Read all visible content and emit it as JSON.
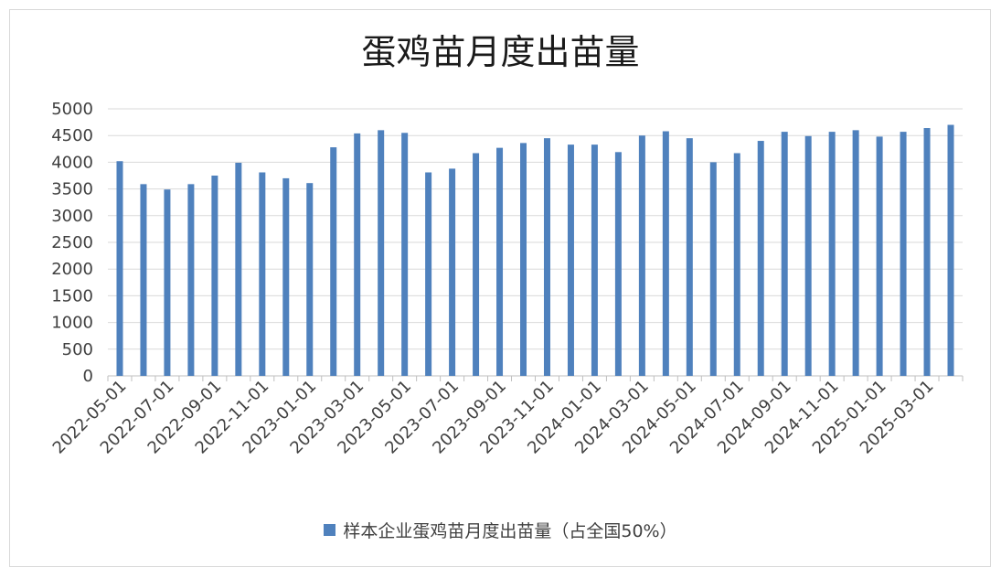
{
  "chart_data": {
    "type": "bar",
    "title": "蛋鸡苗月度出苗量",
    "xlabel": "",
    "ylabel": "",
    "ylim": [
      0,
      5000
    ],
    "yticks": [
      0,
      500,
      1000,
      1500,
      2000,
      2500,
      3000,
      3500,
      4000,
      4500,
      5000
    ],
    "grid": true,
    "legend_position": "bottom",
    "categories": [
      "2022-05-01",
      "2022-06-01",
      "2022-07-01",
      "2022-08-01",
      "2022-09-01",
      "2022-10-01",
      "2022-11-01",
      "2022-12-01",
      "2023-01-01",
      "2023-02-01",
      "2023-03-01",
      "2023-04-01",
      "2023-05-01",
      "2023-06-01",
      "2023-07-01",
      "2023-08-01",
      "2023-09-01",
      "2023-10-01",
      "2023-11-01",
      "2023-12-01",
      "2024-01-01",
      "2024-02-01",
      "2024-03-01",
      "2024-04-01",
      "2024-05-01",
      "2024-06-01",
      "2024-07-01",
      "2024-08-01",
      "2024-09-01",
      "2024-10-01",
      "2024-11-01",
      "2024-12-01",
      "2025-01-01",
      "2025-02-01",
      "2025-03-01",
      "2025-04-01"
    ],
    "tick_labels_shown": [
      "2022-05-01",
      "2022-07-01",
      "2022-09-01",
      "2022-11-01",
      "2023-01-01",
      "2023-03-01",
      "2023-05-01",
      "2023-07-01",
      "2023-09-01",
      "2023-11-01",
      "2024-01-01",
      "2024-03-01",
      "2024-05-01",
      "2024-07-01",
      "2024-09-01",
      "2024-11-01",
      "2025-01-01",
      "2025-03-01"
    ],
    "series": [
      {
        "name": "样本企业蛋鸡苗月度出苗量（占全国50%）",
        "color": "#4f81bd",
        "values": [
          4020,
          3590,
          3490,
          3590,
          3750,
          3990,
          3810,
          3700,
          3610,
          4280,
          4540,
          4600,
          4550,
          3810,
          3880,
          4170,
          4270,
          4360,
          4450,
          4330,
          4330,
          4190,
          4500,
          4580,
          4450,
          4000,
          4170,
          4400,
          4570,
          4490,
          4570,
          4600,
          4480,
          4570,
          4640,
          4700
        ]
      }
    ]
  }
}
